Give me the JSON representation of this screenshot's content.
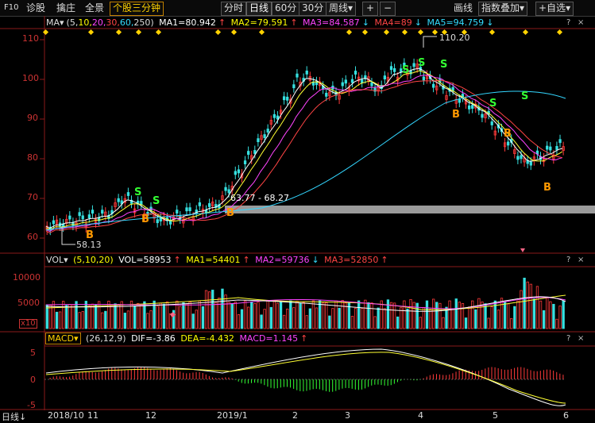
{
  "toolbar": {
    "f10": "F10",
    "items": [
      "诊股",
      "擒庄",
      "全景"
    ],
    "highlight": "个股三分钟",
    "periods": [
      "分时",
      "日线",
      "60分",
      "30分",
      "周线"
    ],
    "active_period": "日线",
    "period_dropdown": "▾",
    "plus": "+",
    "minus": "−",
    "draw": "画线",
    "index_overlay": "指数叠加",
    "watch": "+自选",
    "dd": "▾",
    "minimize": "−",
    "close": "×"
  },
  "ma_legend": {
    "name": "MA▾",
    "params_open": "(5,",
    "p10": "10,",
    "p20": "20,",
    "p30": "30,",
    "p60": "60,",
    "p250": "250)",
    "ma1": "MA1=80.942",
    "ma2": "MA2=79.591",
    "ma3": "MA3=84.587",
    "ma4": "MA4=89",
    "ma5": "MA5=94.759",
    "arrow_up": "↑",
    "arrow_down": "↓"
  },
  "vol_legend": {
    "name": "VOL▾",
    "params": "(5,10,20)",
    "vol": "VOL=58953",
    "ma1": "MA1=54401",
    "ma2": "MA2=59736",
    "ma3": "MA3=52850",
    "arrow_up": "↑",
    "arrow_down": "↓",
    "unit": "x10"
  },
  "macd_legend": {
    "name": "MACD▾",
    "params": "(26,12,9)",
    "dif": "DIF=-3.86",
    "dea": "DEA=-4.432",
    "macd": "MACD=1.145",
    "arrow_up": "↑"
  },
  "panel_controls": {
    "q": "?",
    "close": "×"
  },
  "price_axis": [
    "110",
    "100",
    "90",
    "80",
    "70",
    "60"
  ],
  "vol_axis": [
    "10000",
    "5000"
  ],
  "macd_axis": [
    "5",
    "0",
    "-5"
  ],
  "x_axis": {
    "corner": "日线↓",
    "labels": [
      "2018/10",
      "11",
      "12",
      "2019/1",
      "2",
      "3",
      "4",
      "5",
      "6"
    ]
  },
  "annotations": {
    "high": "110.20",
    "low": "58.13",
    "range": "63.77 - 68.27",
    "buy": "B",
    "sell": "S"
  },
  "colors": {
    "up": "#ff3a3a",
    "down": "#36e0e0",
    "ma1": "#ffffff",
    "ma2": "#ffff33",
    "ma3": "#ff44ff",
    "ma4": "#ff4444",
    "ma5": "#33d6ff",
    "buy": "#ff9900",
    "sell": "#33ff33"
  }
}
